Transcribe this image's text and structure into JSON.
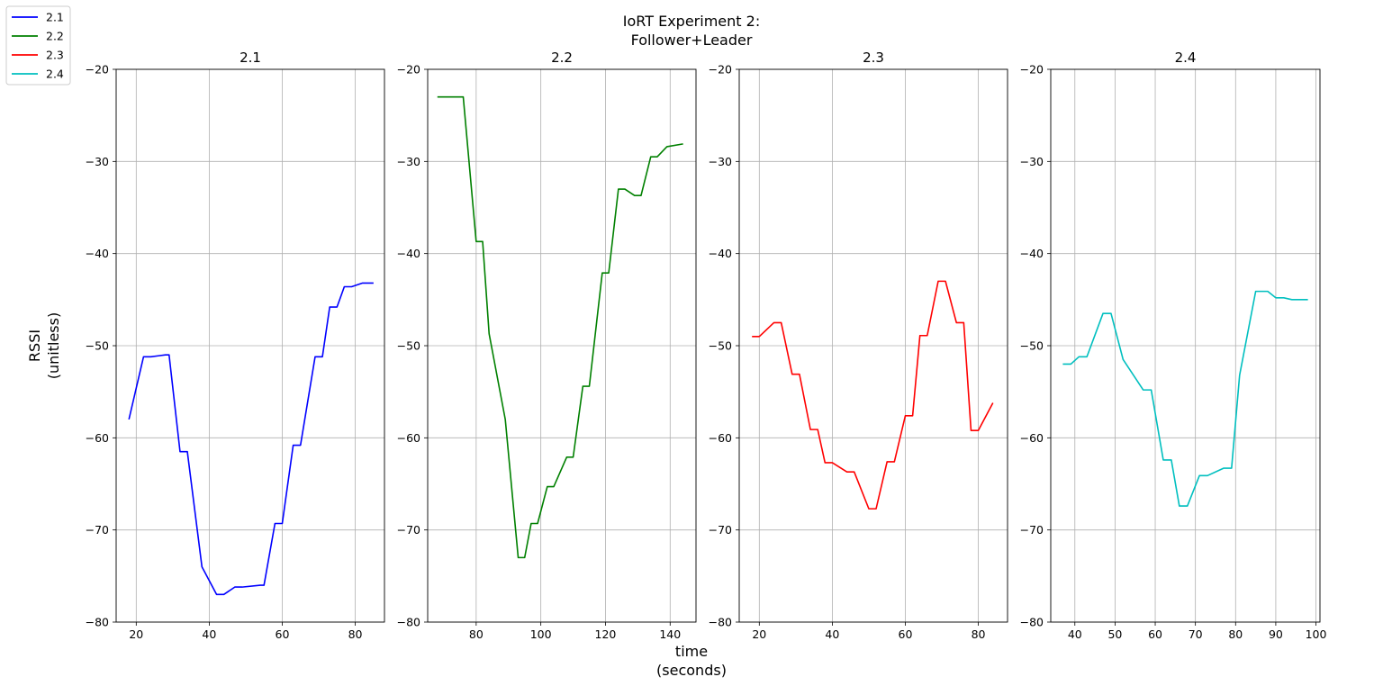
{
  "figure": {
    "suptitle": "IoRT Experiment 2:",
    "suptitle_line2": "Follower+Leader",
    "ylabel": "RSSI",
    "ylabel_line2": "(unitless)",
    "xlabel": "time",
    "xlabel_line2": "(seconds)"
  },
  "legend": {
    "placement": "top-left",
    "entries": [
      {
        "label": "2.1",
        "color": "#0000ff"
      },
      {
        "label": "2.2",
        "color": "#008000"
      },
      {
        "label": "2.3",
        "color": "#ff0000"
      },
      {
        "label": "2.4",
        "color": "#00bfbf"
      }
    ]
  },
  "chart_data": [
    {
      "type": "line",
      "title": "2.1",
      "grid": true,
      "color": "#0000ff",
      "xlim": [
        14.5,
        88
      ],
      "ylim": [
        -80,
        -20
      ],
      "xticks": [
        20,
        40,
        60,
        80
      ],
      "yticks": [
        -80,
        -70,
        -60,
        -50,
        -40,
        -30,
        -20
      ],
      "x": [
        18,
        22,
        24,
        26,
        28,
        29,
        32,
        34,
        38,
        42,
        44,
        47,
        49,
        54,
        55,
        58,
        60,
        63,
        65,
        69,
        71,
        73,
        75,
        77,
        79,
        82,
        84,
        85
      ],
      "y": [
        -58,
        -51.2,
        -51.2,
        -51.1,
        -51,
        -51,
        -61.5,
        -61.5,
        -74,
        -77,
        -77,
        -76.2,
        -76.2,
        -76,
        -76,
        -69.3,
        -69.3,
        -60.8,
        -60.8,
        -51.2,
        -51.2,
        -45.8,
        -45.8,
        -43.6,
        -43.6,
        -43.2,
        -43.2,
        -43.2
      ]
    },
    {
      "type": "line",
      "title": "2.2",
      "grid": true,
      "color": "#008000",
      "xlim": [
        65,
        148
      ],
      "ylim": [
        -80,
        -20
      ],
      "xticks": [
        80,
        100,
        120,
        140
      ],
      "yticks": [
        -80,
        -70,
        -60,
        -50,
        -40,
        -30,
        -20
      ],
      "x": [
        68,
        72,
        76,
        80,
        82,
        84,
        89,
        93,
        95,
        97,
        99,
        102,
        104,
        108,
        110,
        113,
        115,
        119,
        121,
        124,
        126,
        129,
        131,
        134,
        136,
        139,
        144
      ],
      "y": [
        -23,
        -23,
        -23,
        -38.7,
        -38.7,
        -48.7,
        -58,
        -73,
        -73,
        -69.3,
        -69.3,
        -65.3,
        -65.3,
        -62.1,
        -62.1,
        -54.4,
        -54.4,
        -42.1,
        -42.1,
        -33,
        -33,
        -33.7,
        -33.7,
        -29.5,
        -29.5,
        -28.4,
        -28.1
      ]
    },
    {
      "type": "line",
      "title": "2.3",
      "grid": true,
      "color": "#ff0000",
      "xlim": [
        14.5,
        88
      ],
      "ylim": [
        -80,
        -20
      ],
      "xticks": [
        20,
        40,
        60,
        80
      ],
      "yticks": [
        -80,
        -70,
        -60,
        -50,
        -40,
        -30,
        -20
      ],
      "x": [
        18,
        20,
        24,
        26,
        29,
        31,
        34,
        36,
        38,
        40,
        44,
        46,
        50,
        52,
        55,
        57,
        60,
        62,
        64,
        66,
        69,
        71,
        74,
        76,
        78,
        80,
        84
      ],
      "y": [
        -49,
        -49,
        -47.5,
        -47.5,
        -53.1,
        -53.1,
        -59.1,
        -59.1,
        -62.7,
        -62.7,
        -63.7,
        -63.7,
        -67.7,
        -67.7,
        -62.6,
        -62.6,
        -57.6,
        -57.6,
        -48.9,
        -48.9,
        -43,
        -43,
        -47.5,
        -47.5,
        -59.2,
        -59.2,
        -56.2
      ]
    },
    {
      "type": "line",
      "title": "2.4",
      "grid": true,
      "color": "#00bfbf",
      "xlim": [
        34,
        101
      ],
      "ylim": [
        -80,
        -20
      ],
      "xticks": [
        40,
        50,
        60,
        70,
        80,
        90,
        100
      ],
      "yticks": [
        -80,
        -70,
        -60,
        -50,
        -40,
        -30,
        -20
      ],
      "x": [
        37,
        39,
        41,
        43,
        47,
        49,
        52,
        57,
        59,
        62,
        64,
        66,
        68,
        71,
        73,
        77,
        79,
        81,
        85,
        88,
        90,
        92,
        94,
        98
      ],
      "y": [
        -52,
        -52,
        -51.2,
        -51.2,
        -46.5,
        -46.5,
        -51.5,
        -54.8,
        -54.8,
        -62.4,
        -62.4,
        -67.4,
        -67.4,
        -64.1,
        -64.1,
        -63.3,
        -63.3,
        -53.2,
        -44.1,
        -44.1,
        -44.8,
        -44.8,
        -45,
        -45
      ]
    }
  ]
}
